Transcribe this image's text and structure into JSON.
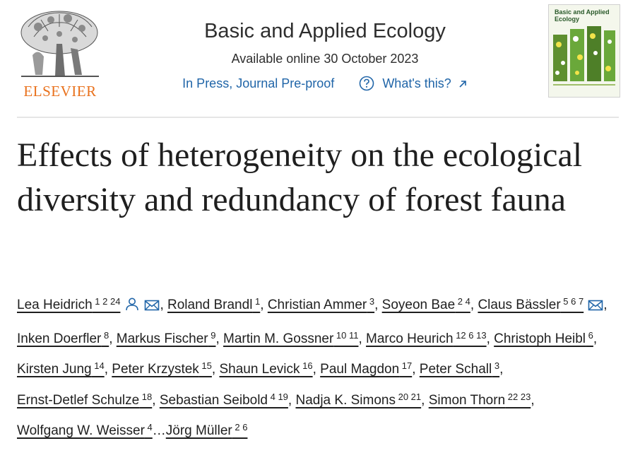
{
  "publisher": {
    "name": "ELSEVIER"
  },
  "journal": {
    "name": "Basic and Applied Ecology",
    "available": "Available online 30 October 2023",
    "status_link": "In Press, Journal Pre-proof",
    "help_link": "What's this?",
    "cover_title": "Basic and Applied Ecology",
    "help_icon": "question-circle-icon",
    "external_icon": "external-arrow-icon"
  },
  "article": {
    "title": "Effects of heterogeneity on the ecological diversity and redundancy of forest fauna"
  },
  "authors": [
    {
      "name": "Lea Heidrich",
      "aff": "1 2 24",
      "icons": [
        "person-icon",
        "envelope-icon"
      ]
    },
    {
      "name": "Roland Brandl",
      "aff": "1"
    },
    {
      "name": "Christian Ammer",
      "aff": "3"
    },
    {
      "name": "Soyeon Bae",
      "aff": "2 4"
    },
    {
      "name": "Claus Bässler",
      "aff": "5 6 7",
      "icons": [
        "envelope-icon"
      ]
    },
    {
      "name": "Inken Doerfler",
      "aff": "8"
    },
    {
      "name": "Markus Fischer",
      "aff": "9"
    },
    {
      "name": "Martin M. Gossner",
      "aff": "10 11"
    },
    {
      "name": "Marco Heurich",
      "aff": "12 6 13"
    },
    {
      "name": "Christoph Heibl",
      "aff": "6"
    },
    {
      "name": "Kirsten Jung",
      "aff": "14"
    },
    {
      "name": "Peter Krzystek",
      "aff": "15"
    },
    {
      "name": "Shaun Levick",
      "aff": "16"
    },
    {
      "name": "Paul Magdon",
      "aff": "17"
    },
    {
      "name": "Peter Schall",
      "aff": "3"
    },
    {
      "name": "Ernst-Detlef Schulze",
      "aff": "18"
    },
    {
      "name": "Sebastian Seibold",
      "aff": "4 19"
    },
    {
      "name": "Nadja K. Simons",
      "aff": "20 21"
    },
    {
      "name": "Simon Thorn",
      "aff": "22 23"
    },
    {
      "name": "Wolfgang W. Weisser",
      "aff": "4"
    },
    {
      "name": "Jörg Müller",
      "aff": "2 6"
    }
  ],
  "author_ellipsis": "…",
  "colors": {
    "link": "#2065a8",
    "brand": "#e9711c",
    "text": "#1f1f1f"
  }
}
